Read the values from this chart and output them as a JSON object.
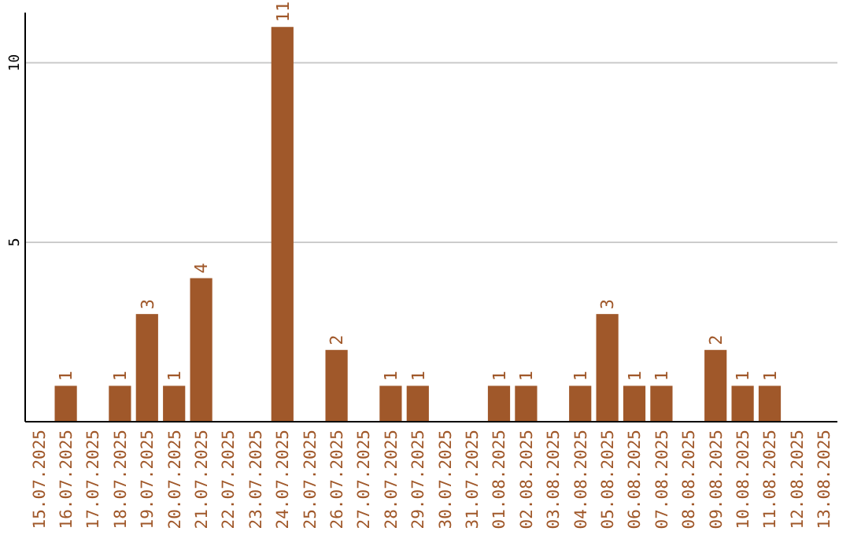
{
  "chart_data": {
    "type": "bar",
    "categories": [
      "15.07.2025",
      "16.07.2025",
      "17.07.2025",
      "18.07.2025",
      "19.07.2025",
      "20.07.2025",
      "21.07.2025",
      "22.07.2025",
      "23.07.2025",
      "24.07.2025",
      "25.07.2025",
      "26.07.2025",
      "27.07.2025",
      "28.07.2025",
      "29.07.2025",
      "30.07.2025",
      "31.07.2025",
      "01.08.2025",
      "02.08.2025",
      "03.08.2025",
      "04.08.2025",
      "05.08.2025",
      "06.08.2025",
      "07.08.2025",
      "08.08.2025",
      "09.08.2025",
      "10.08.2025",
      "11.08.2025",
      "12.08.2025",
      "13.08.2025"
    ],
    "values": [
      0,
      1,
      0,
      1,
      3,
      1,
      4,
      0,
      0,
      11,
      0,
      2,
      0,
      1,
      1,
      0,
      0,
      1,
      1,
      0,
      1,
      3,
      1,
      1,
      0,
      2,
      1,
      1,
      0,
      0
    ],
    "value_labels": [
      null,
      "1",
      null,
      "1",
      "3",
      "1",
      "4",
      null,
      null,
      "11",
      null,
      "2",
      null,
      "1",
      "1",
      null,
      null,
      "1",
      "1",
      null,
      "1",
      "3",
      "1",
      "1",
      null,
      "2",
      "1",
      "1",
      null,
      null
    ],
    "color": "#a0582a",
    "ylim": [
      0,
      11.4
    ],
    "yticks": [
      5,
      10
    ],
    "grid": "y"
  }
}
